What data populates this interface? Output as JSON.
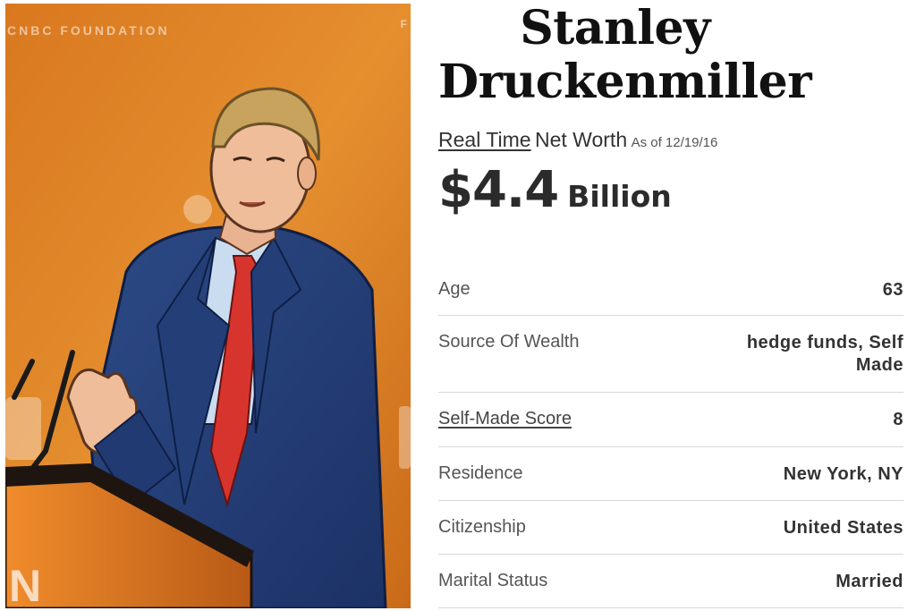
{
  "photo": {
    "background_text": "CNBC FOUNDATION",
    "background_text_right": "F",
    "accent_color": "#e3892b"
  },
  "profile": {
    "name": "Stanley Druckenmiller",
    "real_time_label": "Real Time",
    "net_worth_label": "Net Worth",
    "as_of": "As of 12/19/16",
    "net_worth_amount": "$4.4",
    "net_worth_unit": "Billion",
    "stats": [
      {
        "label": "Age",
        "value": "63"
      },
      {
        "label": "Source Of Wealth",
        "value": "hedge funds, Self Made"
      },
      {
        "label": "Self-Made Score",
        "value": "8"
      },
      {
        "label": "Residence",
        "value": "New York, NY"
      },
      {
        "label": "Citizenship",
        "value": "United States"
      },
      {
        "label": "Marital Status",
        "value": "Married"
      }
    ]
  }
}
